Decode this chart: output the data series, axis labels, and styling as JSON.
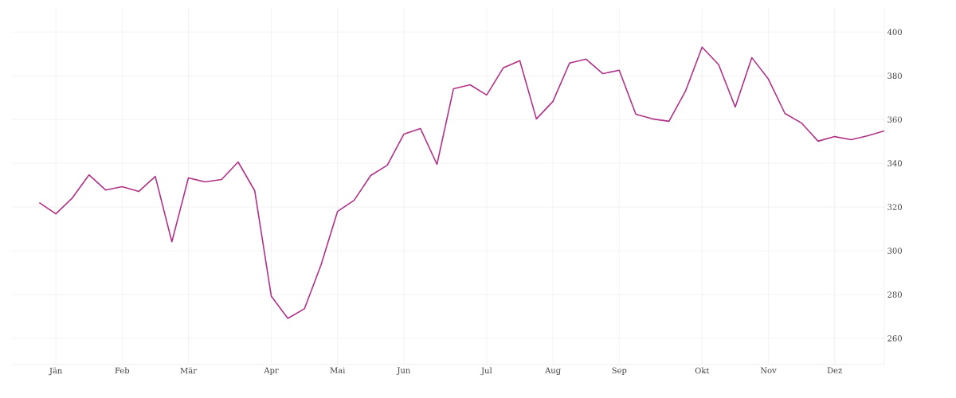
{
  "chart_data": {
    "type": "line",
    "categories": [
      null,
      "Jän",
      null,
      null,
      null,
      "Feb",
      null,
      null,
      null,
      "Mär",
      null,
      null,
      null,
      null,
      "Apr",
      null,
      null,
      null,
      "Mai",
      null,
      null,
      null,
      "Jun",
      null,
      null,
      null,
      null,
      "Jul",
      null,
      null,
      null,
      "Aug",
      null,
      null,
      null,
      "Sep",
      null,
      null,
      null,
      null,
      "Okt",
      null,
      null,
      null,
      "Nov",
      null,
      null,
      null,
      "Dez",
      null,
      null,
      null
    ],
    "series": [
      {
        "color": "#b13187",
        "values": [
          322.0,
          316.9,
          324.2,
          334.7,
          327.8,
          329.3,
          327.1,
          334.0,
          304.1,
          333.3,
          331.5,
          332.6,
          340.6,
          327.5,
          279.3,
          269.1,
          273.5,
          293.5,
          318.0,
          323.1,
          334.4,
          339.1,
          353.3,
          355.9,
          339.5,
          374.1,
          375.9,
          371.2,
          383.6,
          386.9,
          360.3,
          368.3,
          385.8,
          387.6,
          381.0,
          382.5,
          362.4,
          360.3,
          359.2,
          373.0,
          393.1,
          385.1,
          365.7,
          388.3,
          378.5,
          362.8,
          358.4,
          350.1,
          352.2,
          350.8,
          352.6,
          354.8
        ]
      }
    ],
    "ylim": [
      248,
      411
    ],
    "yticks": [
      260,
      280,
      300,
      320,
      340,
      360,
      380,
      400
    ],
    "grid": true,
    "legend": false,
    "marker": "none",
    "line_style": "solid"
  }
}
